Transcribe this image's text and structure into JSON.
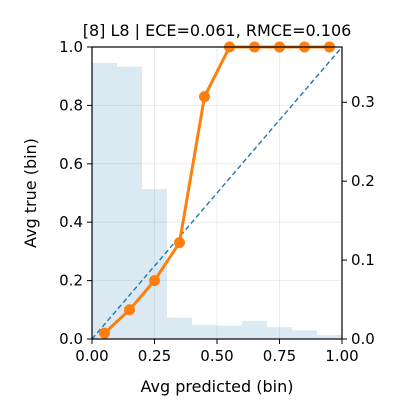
{
  "chart_data": {
    "type": "line",
    "title": "[8] L8 | ECE=0.061, RMCE=0.106",
    "xlabel": "Avg predicted (bin)",
    "ylabel": "Avg true (bin)",
    "xlim": [
      0,
      1
    ],
    "ylim": [
      0,
      1
    ],
    "y2lim": [
      0,
      0.37
    ],
    "grid": true,
    "x_ticks": [
      "0.00",
      "0.25",
      "0.50",
      "0.75",
      "1.00"
    ],
    "y_ticks": [
      "0.0",
      "0.2",
      "0.4",
      "0.6",
      "0.8",
      "1.0"
    ],
    "y2_ticks": [
      "0.0",
      "0.1",
      "0.2",
      "0.3"
    ],
    "reference_line": {
      "x": [
        0,
        1
      ],
      "y": [
        0,
        1
      ],
      "style": "dashed",
      "color": "#1f77b4"
    },
    "histogram": {
      "color": "#1f77b4",
      "bin_edges": [
        0.0,
        0.1,
        0.2,
        0.3,
        0.4,
        0.5,
        0.6,
        0.7,
        0.8,
        0.9,
        1.0
      ],
      "values": [
        0.35,
        0.345,
        0.19,
        0.027,
        0.018,
        0.017,
        0.023,
        0.015,
        0.011,
        0.005
      ]
    },
    "series": [
      {
        "color": "#ff7f0e",
        "x": [
          0.05,
          0.15,
          0.25,
          0.35,
          0.45,
          0.55,
          0.65,
          0.75,
          0.85,
          0.95
        ],
        "y": [
          0.02,
          0.1,
          0.2,
          0.33,
          0.83,
          1.0,
          1.0,
          1.0,
          1.0,
          1.0
        ]
      }
    ]
  }
}
